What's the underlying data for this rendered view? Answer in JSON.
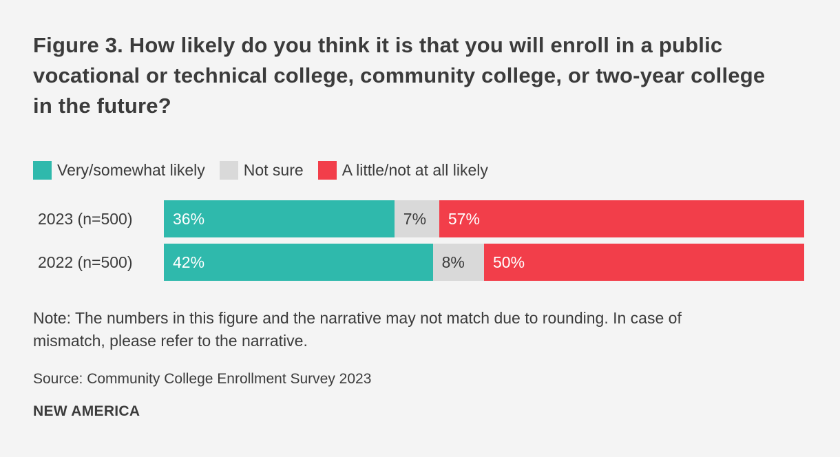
{
  "figure": {
    "title": "Figure 3. How likely do you think it is that you will enroll in a public vocational or technical college, community college, or two-year college in the future?",
    "note": "Note: The numbers in this figure and the narrative may not match due to rounding. In case of mismatch, please refer to the narrative.",
    "source": "Source: Community College Enrollment Survey 2023",
    "brand": "NEW AMERICA"
  },
  "colors": {
    "background": "#F4F4F4",
    "text": "#3B3B3B",
    "teal": "#2FB9AC",
    "gray": "#D9D9D9",
    "red": "#F23E4A",
    "bar_label_light": "#FFFFFF"
  },
  "chart_data": {
    "type": "bar",
    "orientation": "horizontal",
    "stacked": true,
    "title": "Figure 3. How likely do you think it is that you will enroll in a public vocational or technical college, community college, or two-year college in the future?",
    "categories": [
      "2023 (n=500)",
      "2022 (n=500)"
    ],
    "series": [
      {
        "name": "Very/somewhat likely",
        "color": "#2FB9AC",
        "label_color": "#FFFFFF",
        "values": [
          36,
          42
        ]
      },
      {
        "name": "Not sure",
        "color": "#D9D9D9",
        "label_color": "#3B3B3B",
        "values": [
          7,
          8
        ]
      },
      {
        "name": "A little/not at all likely",
        "color": "#F23E4A",
        "label_color": "#FFFFFF",
        "values": [
          57,
          50
        ]
      }
    ],
    "value_suffix": "%",
    "xlim": [
      0,
      100
    ],
    "legend_position": "top",
    "grid": false
  }
}
